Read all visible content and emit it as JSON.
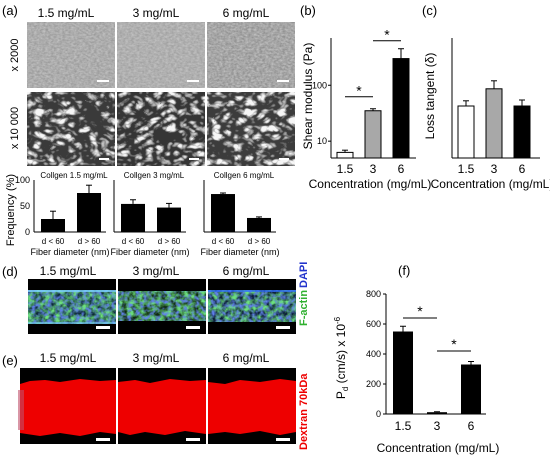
{
  "panel_letters": {
    "a": "(a)",
    "b": "(b)",
    "c": "(c)",
    "d": "(d)",
    "e": "(e)",
    "f": "(f)"
  },
  "concentrations": [
    "1.5 mg/mL",
    "3 mg/mL",
    "6 mg/mL"
  ],
  "sem_row_labels": [
    "x 2000",
    "x 10 000"
  ],
  "stain_labels": {
    "factin": "F-actin",
    "dapi": "DAPI",
    "dextran": "Dextran 70kDa"
  },
  "colors": {
    "factin_green": "#2fb02f",
    "dapi_blue": "#2233cc",
    "dextran_red": "#ee0000",
    "black": "#000000",
    "grey_bar": "#a8a8a8"
  },
  "chart_data": [
    {
      "id": "histograms",
      "type": "bar",
      "ylabel": "Frequency (%)",
      "xlabel": "Fiber diameter (nm)",
      "ylim": [
        0,
        100
      ],
      "yticks": [
        0,
        50,
        100
      ],
      "categories": [
        "d < 60",
        "d > 60"
      ],
      "panels": [
        {
          "title": "Collgen 1.5 mg/mL",
          "values": [
            25,
            75
          ],
          "errors": [
            15,
            15
          ]
        },
        {
          "title": "Collgen 3 mg/mL",
          "values": [
            54,
            47
          ],
          "errors": [
            8,
            8
          ]
        },
        {
          "title": "Collgen 6 mg/mL",
          "values": [
            73,
            27
          ],
          "errors": [
            2,
            2
          ]
        }
      ]
    },
    {
      "id": "shear",
      "type": "bar",
      "log_scale": true,
      "ylabel": "Shear modulus (Pa)",
      "xlabel": "Concentration (mg/mL)",
      "ylim": [
        5,
        700
      ],
      "ytick_labels": [
        "10",
        "100"
      ],
      "ytick_values": [
        10,
        100
      ],
      "categories": [
        "1.5",
        "3",
        "6"
      ],
      "values": [
        6.3,
        35,
        300
      ],
      "errors": [
        0.6,
        3,
        150
      ],
      "fills": [
        "#ffffff",
        "#a8a8a8",
        "#000000"
      ],
      "significance": "*"
    },
    {
      "id": "loss",
      "type": "bar",
      "ylabel": "Loss tangent (δ)",
      "xlabel": "Concentration (mg/mL)",
      "ylim": [
        0,
        0.3
      ],
      "categories": [
        "1.5",
        "3",
        "6"
      ],
      "values": [
        0.13,
        0.173,
        0.13
      ],
      "errors": [
        0.013,
        0.02,
        0.015
      ],
      "fills": [
        "#ffffff",
        "#a8a8a8",
        "#000000"
      ]
    },
    {
      "id": "perm",
      "type": "bar",
      "ylabel": "P d (cm/s) x 10-6",
      "xlabel": "Concentration (mg/mL)",
      "ylim": [
        0,
        800
      ],
      "yticks": [
        0,
        200,
        400,
        600,
        800
      ],
      "categories": [
        "1.5",
        "3",
        "6"
      ],
      "values": [
        550,
        12,
        330
      ],
      "errors": [
        35,
        3,
        20
      ],
      "fills": [
        "#000000",
        "#000000",
        "#000000"
      ],
      "significance": "*"
    }
  ]
}
